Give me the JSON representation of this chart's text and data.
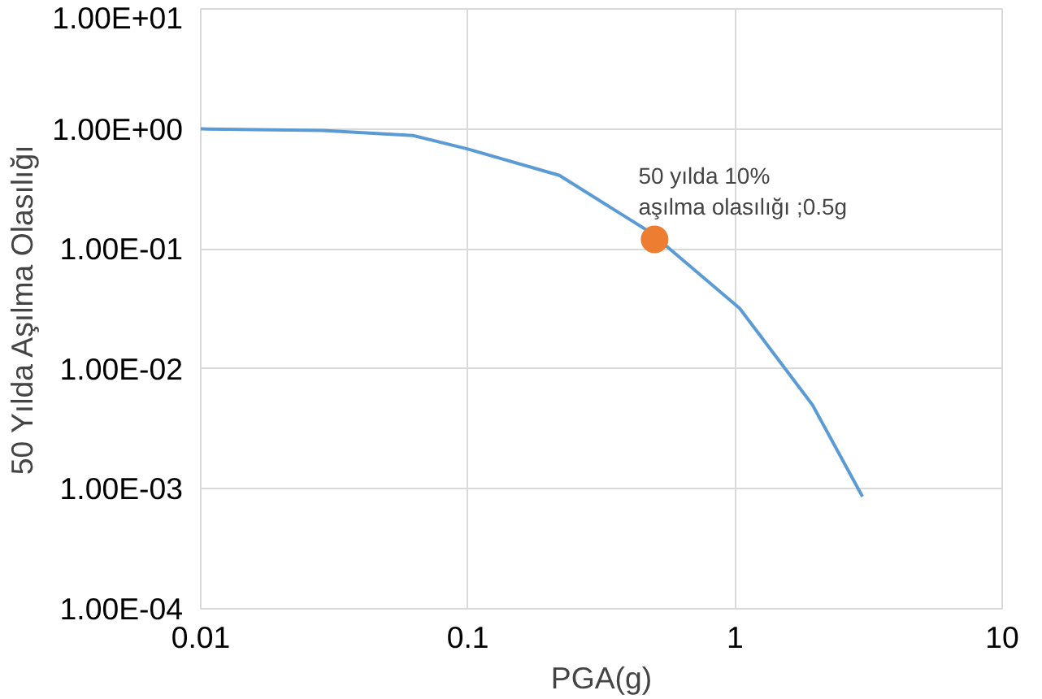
{
  "chart_data": {
    "type": "line",
    "xlabel": "PGA(g)",
    "ylabel": "50 Yılda Aşılma Olasılığı",
    "log": "xy",
    "grid": true,
    "xlim": [
      0.01,
      10
    ],
    "ylim": [
      0.0001,
      10
    ],
    "xticks": [
      {
        "value": 0.01,
        "label": "0.01"
      },
      {
        "value": 0.1,
        "label": "0.1"
      },
      {
        "value": 1,
        "label": "1"
      },
      {
        "value": 10,
        "label": "10"
      }
    ],
    "yticks": [
      {
        "value": 0.0001,
        "label": "1.00E-04"
      },
      {
        "value": 0.001,
        "label": "1.00E-03"
      },
      {
        "value": 0.01,
        "label": "1.00E-02"
      },
      {
        "value": 0.1,
        "label": "1.00E-01"
      },
      {
        "value": 1,
        "label": "1.00E+00"
      },
      {
        "value": 10,
        "label": "1.00E+01"
      }
    ],
    "series": [
      {
        "color": "#5b9bd5",
        "x": [
          0.01,
          0.0286,
          0.0623,
          0.1,
          0.22,
          0.48,
          1.04,
          1.95,
          3.0
        ],
        "values": [
          1.0,
          0.97,
          0.88,
          0.68,
          0.41,
          0.138,
          0.032,
          0.005,
          0.00086
        ]
      },
      {
        "type": "scatter",
        "color": "#ed7d31",
        "marker": "circle",
        "x": [
          0.5
        ],
        "values": [
          0.12
        ]
      }
    ],
    "annotations": [
      {
        "text": "50 yılda 10%\naşılma olasılığı ;0.5g",
        "x": 0.5,
        "y": 0.12
      }
    ]
  }
}
